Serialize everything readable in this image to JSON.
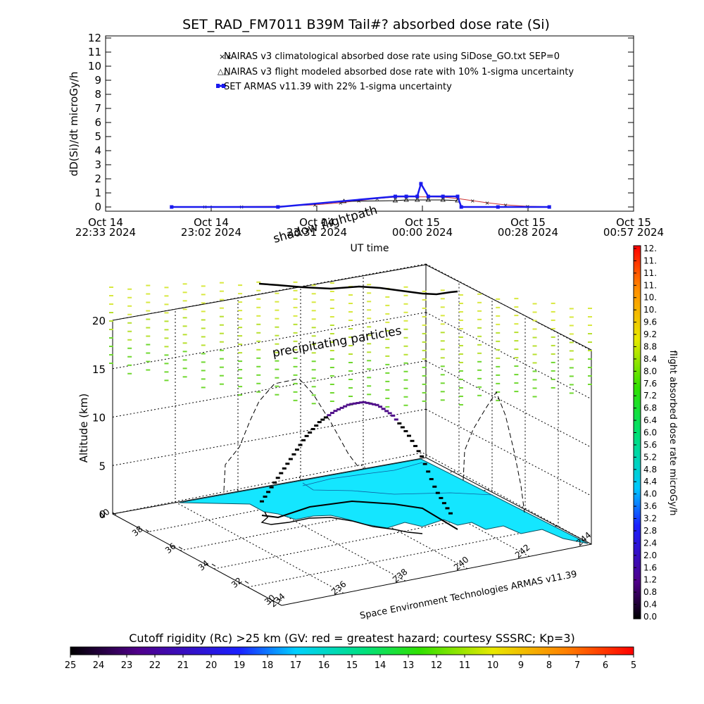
{
  "chart_data": [
    {
      "type": "line",
      "title": "SET_RAD_FM7011  B39M Tail#? absorbed dose rate (Si)",
      "ylabel": "dD(Si)/dt microGy/h",
      "xlabel": "UT time",
      "ylim": [
        0,
        12
      ],
      "y_ticks": [
        "0",
        "1",
        "2",
        "3",
        "4",
        "5",
        "6",
        "7",
        "8",
        "9",
        "10",
        "11",
        "12"
      ],
      "x_ticks": [
        {
          "date": "Oct 14",
          "time": "22:33 2024"
        },
        {
          "date": "Oct 14",
          "time": "23:02 2024"
        },
        {
          "date": "Oct 14",
          "time": "23:31 2024"
        },
        {
          "date": "Oct 15",
          "time": "00:00 2024"
        },
        {
          "date": "Oct 15",
          "time": "00:28 2024"
        },
        {
          "date": "Oct 15",
          "time": "00:57 2024"
        }
      ],
      "legend_position": "top-center",
      "series": [
        {
          "name": "NAIRAS v3 climatological absorbed dose rate using SiDose_GO.txt SEP=0",
          "marker": "x",
          "color": "#cc3333",
          "x": [
            "22:51",
            "23:00",
            "23:10",
            "23:20",
            "23:30",
            "23:37",
            "23:42",
            "23:47",
            "23:52",
            "23:55",
            "23:58",
            "00:01",
            "00:05",
            "00:09",
            "00:13",
            "00:17",
            "00:22",
            "00:28",
            "00:34"
          ],
          "values": [
            0.02,
            0.02,
            0.03,
            0.05,
            0.15,
            0.3,
            0.45,
            0.6,
            0.7,
            0.72,
            0.72,
            0.72,
            0.7,
            0.6,
            0.45,
            0.3,
            0.15,
            0.05,
            0.02
          ]
        },
        {
          "name": "NAIRAS v3 flight modeled absorbed dose rate with 10% 1-sigma uncertainty",
          "marker": "triangle",
          "color": "#000000",
          "x": [
            "23:38",
            "23:52",
            "23:55",
            "23:58",
            "00:01",
            "00:05",
            "00:09"
          ],
          "values": [
            0.4,
            0.45,
            0.5,
            0.5,
            0.5,
            0.5,
            0.45
          ]
        },
        {
          "name": "SET ARMAS v11.39 with 22% 1-sigma uncertainty",
          "marker": "filled-square",
          "color": "#1a1aee",
          "x": [
            "22:51",
            "23:20",
            "23:52",
            "23:55",
            "23:58",
            "23:59",
            "00:01",
            "00:05",
            "00:09",
            "00:10",
            "00:20",
            "00:34"
          ],
          "values": [
            0.0,
            0.0,
            0.75,
            0.75,
            0.75,
            1.65,
            0.75,
            0.75,
            0.75,
            0.0,
            0.0,
            0.0
          ]
        }
      ]
    },
    {
      "type": "scatter",
      "title": "",
      "zlabel": "Altitude (km)",
      "z_ticks": [
        "0",
        "5",
        "10",
        "15",
        "20"
      ],
      "lat_ticks": [
        "30",
        "32",
        "34",
        "36",
        "38",
        "40"
      ],
      "lon_ticks": [
        "234",
        "236",
        "238",
        "240",
        "242",
        "244"
      ],
      "labels": {
        "shadow": "shadow flightpath",
        "precip": "precipitating particles",
        "credit": "Space Environment Technologies ARMAS v11.39"
      },
      "flight_path_altitude_km": [
        1,
        3,
        5,
        7,
        8.5,
        9.5,
        10.2,
        10.5,
        10.3,
        9.5,
        8,
        6,
        3,
        1
      ],
      "colorbar": {
        "label": "flight absorbed dose rate microGy/h",
        "ticks": [
          "0.0",
          "0.4",
          "0.8",
          "1.2",
          "1.6",
          "2.0",
          "2.4",
          "2.8",
          "3.2",
          "3.6",
          "4.0",
          "4.4",
          "4.8",
          "5.2",
          "5.6",
          "6.0",
          "6.4",
          "6.8",
          "7.2",
          "7.6",
          "8.0",
          "8.4",
          "8.8",
          "9.2",
          "9.6",
          "10.",
          "10.",
          "11.",
          "11.",
          "11.",
          "12."
        ]
      },
      "map_color": "#14e6ff"
    },
    {
      "type": "heatmap",
      "title": "Cutoff rigidity (Rc) >25 km (GV: red = greatest hazard; courtesy SSSRC; Kp=3)",
      "ticks": [
        "25",
        "24",
        "23",
        "22",
        "21",
        "20",
        "19",
        "18",
        "17",
        "16",
        "15",
        "14",
        "13",
        "12",
        "11",
        "10",
        "9",
        "8",
        "7",
        "6",
        "5"
      ]
    }
  ]
}
